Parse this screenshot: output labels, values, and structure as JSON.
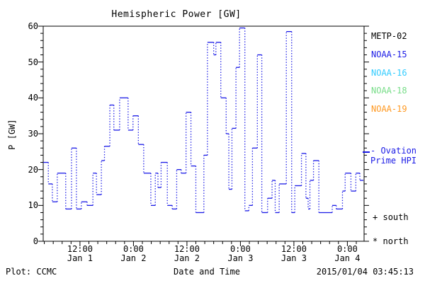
{
  "title": "Hemispheric Power [GW]",
  "colors": {
    "background": "#ffffff",
    "axis": "#000000",
    "hpi_line": "#1a1ae6"
  },
  "legend": {
    "satellites": [
      {
        "label": "METP-02",
        "color": "#000000"
      },
      {
        "label": "NOAA-15",
        "color": "#1a1ae6"
      },
      {
        "label": "NOAA-16",
        "color": "#33ccff"
      },
      {
        "label": "NOAA-18",
        "color": "#77dd88"
      },
      {
        "label": "NOAA-19",
        "color": "#ff9922"
      }
    ],
    "ovation": {
      "line1": "- Ovation",
      "line2": "Prime HPI",
      "color": "#1a1ae6"
    },
    "markers": [
      {
        "symbol": "+",
        "label": "south"
      },
      {
        "symbol": "*",
        "label": "north"
      }
    ]
  },
  "footer": {
    "left": "Plot: CCMC",
    "center": "Date and Time",
    "right": "2015/01/04 03:45:13"
  },
  "chart_data": {
    "type": "line",
    "line_style": "step-post, solid horizontals with dotted vertical connectors",
    "title": "Hemispheric Power [GW]",
    "xlabel": "Date and Time",
    "ylabel": "P [GW]",
    "ylim": [
      0,
      60
    ],
    "y_major_ticks": [
      0,
      10,
      20,
      30,
      40,
      50,
      60
    ],
    "y_minor_step": 2,
    "x_unit": "hours since 2015-01-01 00:00",
    "xlim": [
      3.75,
      75.75
    ],
    "x_minor_step_hours": 2,
    "x_major_ticks": [
      {
        "t": 12,
        "time": "12:00",
        "date": "Jan 1"
      },
      {
        "t": 24,
        "time": "0:00",
        "date": "Jan 2"
      },
      {
        "t": 36,
        "time": "12:00",
        "date": "Jan 2"
      },
      {
        "t": 48,
        "time": "0:00",
        "date": "Jan 3"
      },
      {
        "t": 60,
        "time": "12:00",
        "date": "Jan 3"
      },
      {
        "t": 72,
        "time": "0:00",
        "date": "Jan 4"
      }
    ],
    "grid": false,
    "legend_position": "right",
    "series": [
      {
        "name": "Ovation Prime HPI",
        "color": "#1a1ae6",
        "t_end": 75.6,
        "steps": [
          [
            3.75,
            22
          ],
          [
            4.9,
            16
          ],
          [
            5.8,
            11
          ],
          [
            6.9,
            19
          ],
          [
            8.8,
            9
          ],
          [
            10.1,
            26
          ],
          [
            11.2,
            9
          ],
          [
            12.3,
            11
          ],
          [
            13.6,
            10
          ],
          [
            14.9,
            19
          ],
          [
            15.7,
            13
          ],
          [
            16.8,
            22.5
          ],
          [
            17.5,
            26.5
          ],
          [
            18.7,
            38
          ],
          [
            19.6,
            31
          ],
          [
            20.9,
            40
          ],
          [
            22.8,
            31
          ],
          [
            23.9,
            35
          ],
          [
            25.1,
            27
          ],
          [
            26.3,
            19
          ],
          [
            27.9,
            10
          ],
          [
            28.9,
            19
          ],
          [
            29.5,
            15
          ],
          [
            30.2,
            22
          ],
          [
            31.6,
            10
          ],
          [
            32.7,
            9
          ],
          [
            33.7,
            20
          ],
          [
            34.7,
            19
          ],
          [
            35.8,
            36
          ],
          [
            36.9,
            21
          ],
          [
            38,
            8
          ],
          [
            39.8,
            24
          ],
          [
            40.6,
            55.5
          ],
          [
            42,
            52
          ],
          [
            42.5,
            55.5
          ],
          [
            43.6,
            40
          ],
          [
            44.8,
            30
          ],
          [
            45.4,
            14.5
          ],
          [
            46.1,
            31.5
          ],
          [
            47,
            48.5
          ],
          [
            47.8,
            59.5
          ],
          [
            49,
            8.5
          ],
          [
            49.9,
            10
          ],
          [
            50.7,
            26
          ],
          [
            51.8,
            52
          ],
          [
            52.8,
            8
          ],
          [
            54.1,
            12
          ],
          [
            55.1,
            17
          ],
          [
            55.8,
            8
          ],
          [
            56.7,
            16
          ],
          [
            58.3,
            58.5
          ],
          [
            59.5,
            8
          ],
          [
            60.2,
            15.5
          ],
          [
            61.7,
            24.5
          ],
          [
            62.7,
            12
          ],
          [
            63.2,
            9
          ],
          [
            63.6,
            17
          ],
          [
            64.4,
            22.5
          ],
          [
            65.6,
            8
          ],
          [
            68.6,
            10
          ],
          [
            69.5,
            9
          ],
          [
            70.9,
            14
          ],
          [
            71.5,
            19
          ],
          [
            72.8,
            14
          ],
          [
            73.9,
            19
          ],
          [
            74.8,
            17
          ]
        ]
      }
    ]
  }
}
